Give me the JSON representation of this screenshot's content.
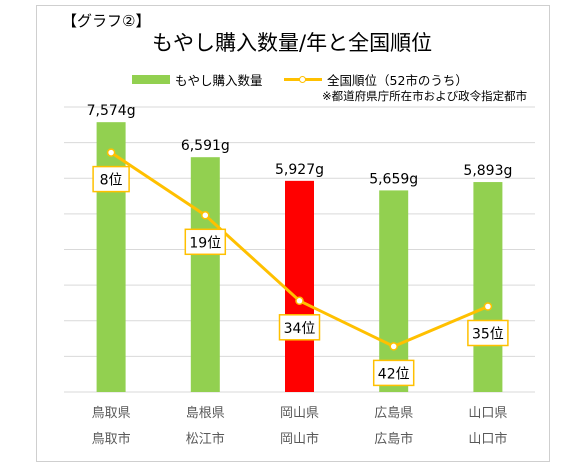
{
  "header": {
    "graph_no": "【グラフ②】",
    "title": "もやし購入数量/年と全国順位"
  },
  "legend": {
    "bar": "もやし購入数量",
    "line": "全国順位（52市のうち）"
  },
  "note": "※都道府県庁所在市および政令指定都市",
  "colors": {
    "bar": "#92d050",
    "highlight": "#ff0000",
    "line": "#ffc000",
    "grid": "#d9d9d9",
    "axis_text": "#595959"
  },
  "chart_data": {
    "type": "bar",
    "categories": [
      {
        "prefecture": "鳥取県",
        "city": "鳥取市"
      },
      {
        "prefecture": "島根県",
        "city": "松江市"
      },
      {
        "prefecture": "岡山県",
        "city": "岡山市"
      },
      {
        "prefecture": "広島県",
        "city": "広島市"
      },
      {
        "prefecture": "山口県",
        "city": "山口市"
      }
    ],
    "series": [
      {
        "name": "もやし購入数量",
        "values": [
          7574,
          6591,
          5927,
          5659,
          5893
        ],
        "labels": [
          "7,574g",
          "6,591g",
          "5,927g",
          "5,659g",
          "5,893g"
        ],
        "highlight_index": 2
      },
      {
        "name": "全国順位（52市のうち）",
        "type": "line",
        "values": [
          8,
          19,
          34,
          42,
          35
        ],
        "labels": [
          "8位",
          "19位",
          "34位",
          "42位",
          "35位"
        ]
      }
    ],
    "ylim": [
      0,
      8000
    ],
    "rank_axis": [
      0,
      50
    ],
    "grid": true
  }
}
